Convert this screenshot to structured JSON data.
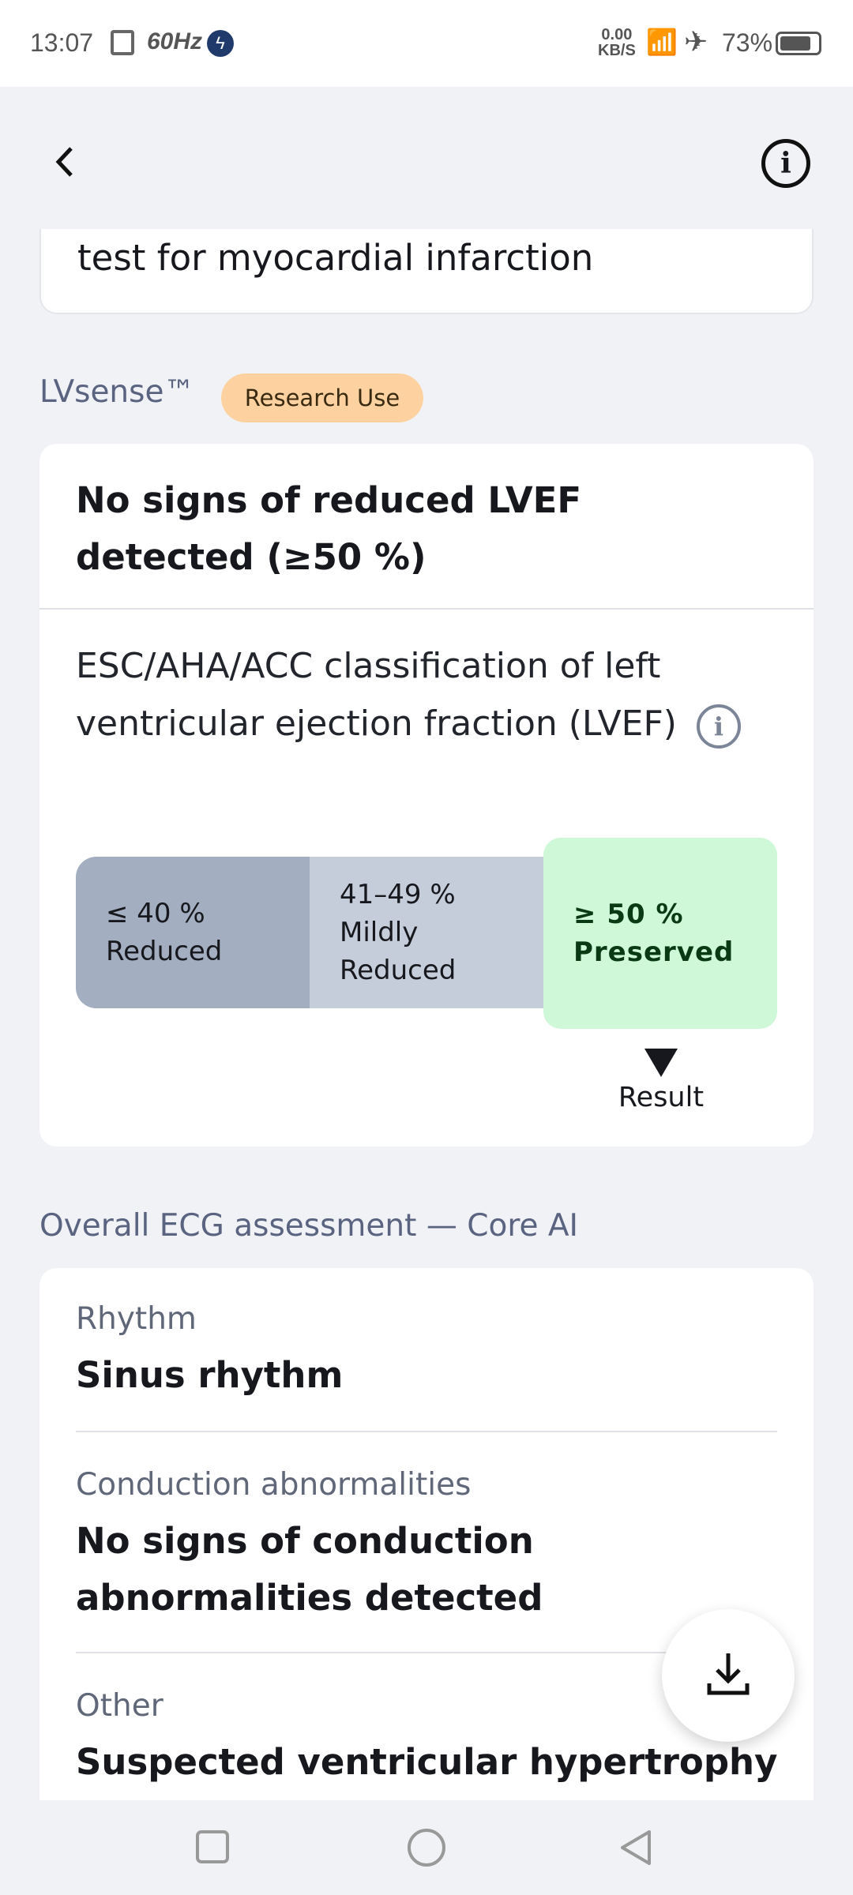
{
  "status_bar": {
    "time": "13:07",
    "refresh_rate": "60Hz",
    "net_speed": "0.00",
    "net_unit": "KB/S",
    "battery": "73%"
  },
  "prev_card": {
    "text": "test for myocardial infarction"
  },
  "lvsense": {
    "title": "LVsense™",
    "badge": "Research Use",
    "result": "No signs of reduced LVEF detected (≥50 %)",
    "classification": "ESC/AHA/ACC classification of left ventricular ejection fraction (LVEF)",
    "segments": [
      {
        "range": "≤ 40 %",
        "label": "Reduced"
      },
      {
        "range": "41–49 %",
        "label": "Mildly Reduced"
      },
      {
        "range": "≥ 50 %",
        "label": "Preserved"
      }
    ],
    "result_marker": "Result",
    "colors": {
      "reduced": "#a3aec0",
      "mild": "#c6cdda",
      "preserved": "#cff8d8",
      "badge": "#fdd2a0"
    }
  },
  "overall": {
    "title": "Overall ECG assessment — Core AI",
    "rows": [
      {
        "label": "Rhythm",
        "value": "Sinus rhythm"
      },
      {
        "label": "Conduction abnormalities",
        "value": "No signs of conduction abnormalities detected"
      },
      {
        "label": "Other",
        "value": "Suspected ventricular hypertrophy"
      }
    ]
  }
}
